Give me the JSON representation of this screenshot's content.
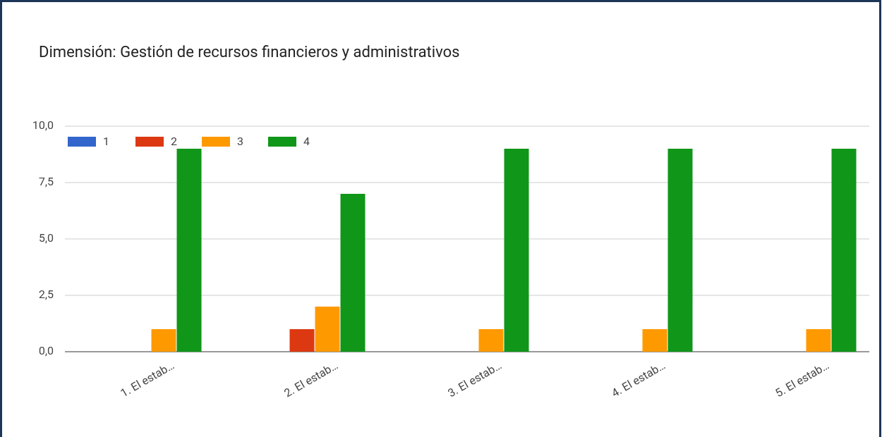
{
  "chart_data": {
    "type": "bar",
    "title": "Dimensión: Gestión de recursos financieros y administrativos",
    "categories": [
      "1. El estab…",
      "2. El estab…",
      "3. El estab…",
      "4. El estab…",
      "5. El estab…"
    ],
    "series": [
      {
        "name": "1",
        "color": "#3366cc",
        "values": [
          0,
          0,
          0,
          0,
          0
        ]
      },
      {
        "name": "2",
        "color": "#dc3912",
        "values": [
          0,
          1,
          0,
          0,
          0
        ]
      },
      {
        "name": "3",
        "color": "#ff9900",
        "values": [
          1,
          2,
          1,
          1,
          1
        ]
      },
      {
        "name": "4",
        "color": "#109618",
        "values": [
          9,
          7,
          9,
          9,
          9
        ]
      }
    ],
    "ylim": [
      0,
      10
    ],
    "yticks": [
      {
        "value": 0,
        "label": "0,0"
      },
      {
        "value": 2.5,
        "label": "2,5"
      },
      {
        "value": 5,
        "label": "5,0"
      },
      {
        "value": 7.5,
        "label": "7,5"
      },
      {
        "value": 10,
        "label": "10,0"
      }
    ],
    "grid": true,
    "legend": "top-left"
  }
}
